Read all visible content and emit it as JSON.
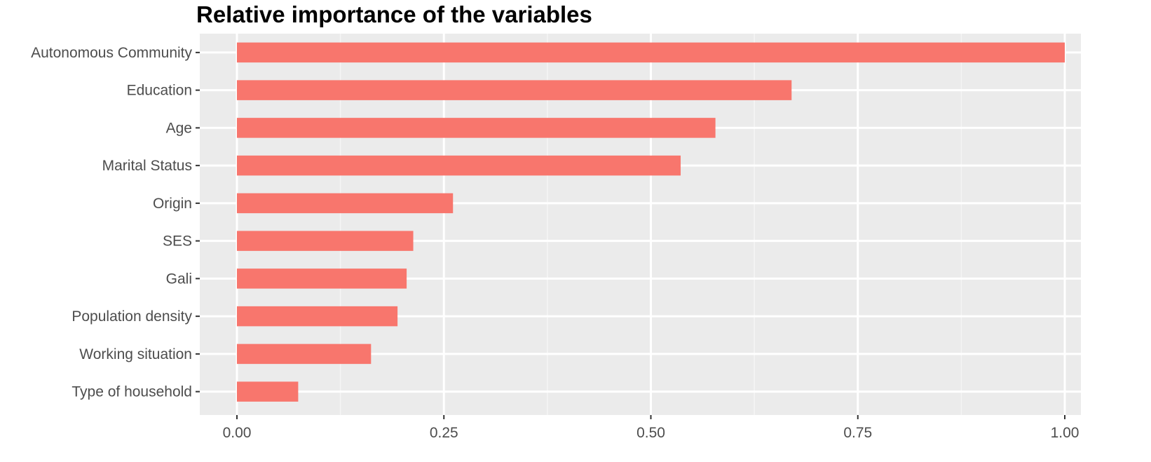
{
  "chart_data": {
    "type": "bar",
    "orientation": "horizontal",
    "title": "Relative importance of the variables",
    "xlabel": "",
    "ylabel": "",
    "categories": [
      "Autonomous Community",
      "Education",
      "Age",
      "Marital Status",
      "Origin",
      "SES",
      "Gali",
      "Population density",
      "Working situation",
      "Type of household"
    ],
    "values": [
      1.0,
      0.67,
      0.578,
      0.536,
      0.261,
      0.213,
      0.205,
      0.194,
      0.162,
      0.074
    ],
    "xlim": [
      -0.045,
      1.02
    ],
    "xticks": [
      0.0,
      0.25,
      0.5,
      0.75,
      1.0
    ],
    "xtick_labels": [
      "0.00",
      "0.25",
      "0.50",
      "0.75",
      "1.00"
    ],
    "grid": true,
    "colors": {
      "bar": "#F8766D",
      "panel_background": "#EBEBEB",
      "grid_major": "#FFFFFF",
      "grid_minor": "#F5F5F5",
      "tick_text": "#4D4D4D",
      "tick_mark": "#333333"
    }
  }
}
